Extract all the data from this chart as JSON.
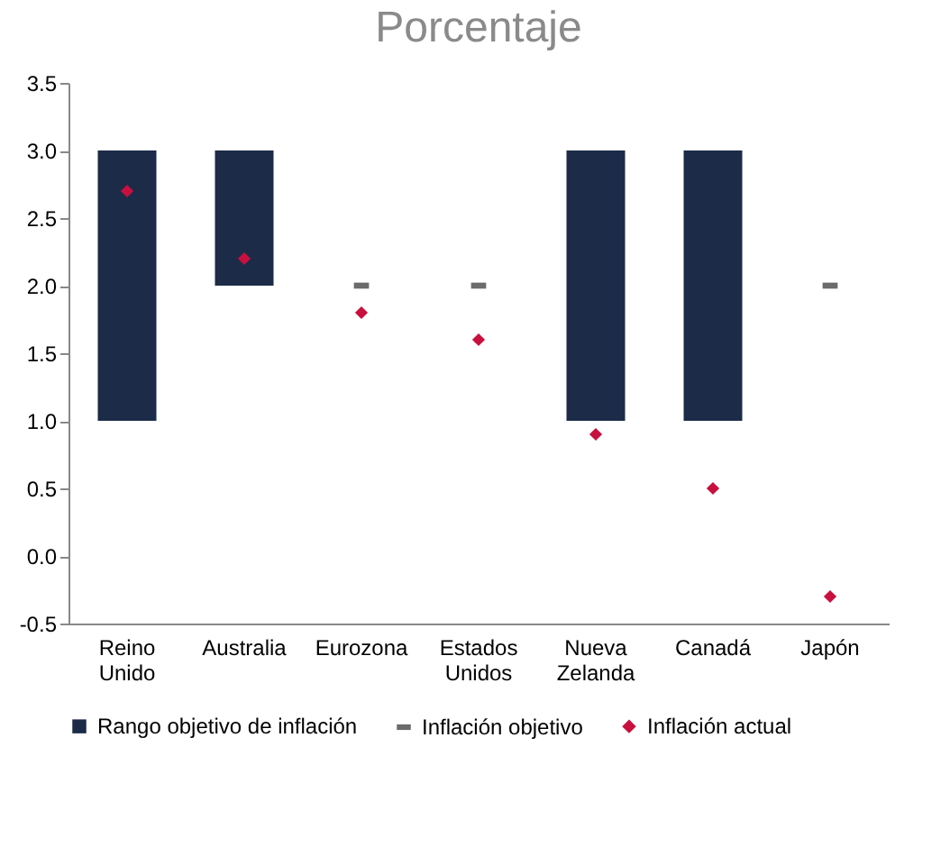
{
  "chart_data": {
    "type": "bar",
    "title": "Porcentaje",
    "categories": [
      "Reino Unido",
      "Australia",
      "Eurozona",
      "Estados Unidos",
      "Nueva Zelanda",
      "Canadá",
      "Japón"
    ],
    "series": [
      {
        "name": "Rango objetivo de inflación",
        "color": "#1b2b48",
        "base": [
          1,
          2,
          null,
          null,
          1,
          1,
          null
        ],
        "values": [
          2,
          1,
          null,
          null,
          2,
          2,
          null
        ]
      },
      {
        "name": "Inflación objetivo",
        "type": "scatter",
        "color": "#6b6b6b",
        "values": [
          null,
          null,
          2,
          2,
          null,
          null,
          2
        ]
      },
      {
        "name": "Inflación actual",
        "type": "scatter",
        "marker": "diamond",
        "color": "#c8103e",
        "values": [
          2.7,
          2.2,
          1.8,
          1.6,
          0.9,
          0.5,
          -0.3
        ]
      }
    ],
    "ylim": [
      -0.5,
      3.5
    ],
    "yticks": [
      {
        "value": -0.5,
        "label": "-0.5"
      },
      {
        "value": 0,
        "label": "0.0"
      },
      {
        "value": 0.5,
        "label": "0.5"
      },
      {
        "value": 1,
        "label": "1.0"
      },
      {
        "value": 1.5,
        "label": "1.5"
      },
      {
        "value": 2,
        "label": "2.0"
      },
      {
        "value": 2.5,
        "label": "2.5"
      },
      {
        "value": 3,
        "label": "3.0"
      },
      {
        "value": 3.5,
        "label": "3.5"
      }
    ],
    "grid": false,
    "legend": "bottom"
  }
}
